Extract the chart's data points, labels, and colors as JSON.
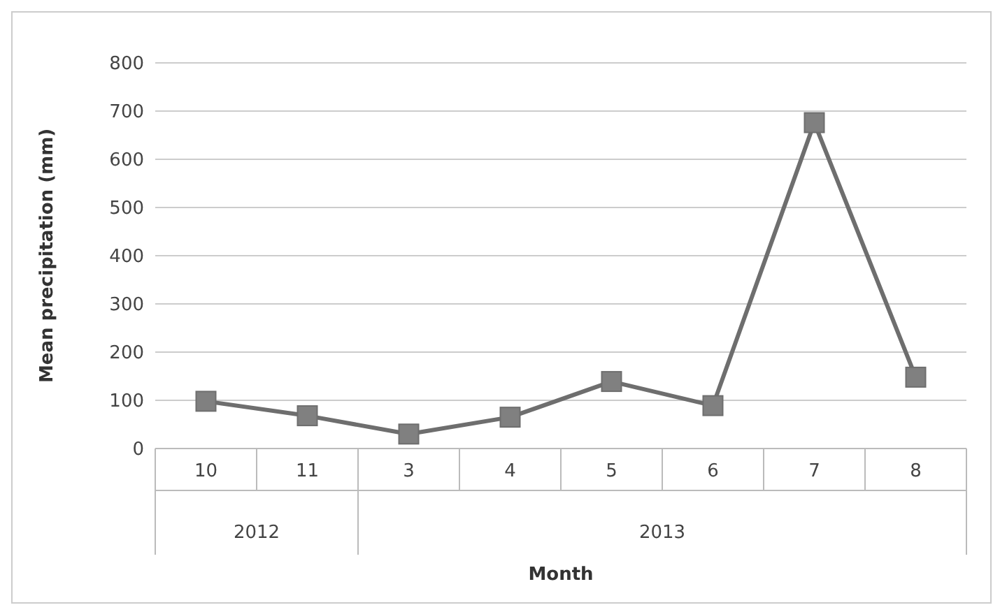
{
  "chart_data": {
    "type": "line",
    "xlabel": "Month",
    "ylabel": "Mean precipitation (mm)",
    "categories": [
      "10",
      "11",
      "3",
      "4",
      "5",
      "6",
      "7",
      "8"
    ],
    "series": [
      {
        "color": "#6e6e6e",
        "values": [
          98,
          68,
          30,
          65,
          139,
          89,
          676,
          148
        ]
      }
    ],
    "annotations": [
      "2012",
      "2013"
    ],
    "ylim": [
      0,
      800
    ],
    "yticks": [
      0,
      100,
      200,
      300,
      400,
      500,
      600,
      700,
      800
    ],
    "grid": "y",
    "marker": "square",
    "line_style": "solid"
  }
}
